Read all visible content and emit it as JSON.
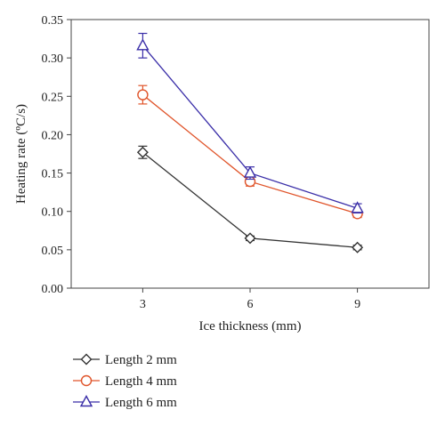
{
  "chart_data": {
    "type": "line",
    "title": "",
    "xlabel": "Ice thickness (mm)",
    "ylabel": "Heating rate (ºC/s)",
    "x": [
      3,
      6,
      9
    ],
    "x_tick_labels": [
      "3",
      "6",
      "9"
    ],
    "xlim": [
      1,
      11
    ],
    "ylim": [
      0,
      0.35
    ],
    "y_ticks": [
      0,
      0.05,
      0.1,
      0.15,
      0.2,
      0.25,
      0.3,
      0.35
    ],
    "y_tick_labels": [
      "0.00",
      "0.05",
      "0.10",
      "0.15",
      "0.20",
      "0.25",
      "0.30",
      "0.35"
    ],
    "grid": false,
    "legend_position": "bottom-left, below plot",
    "series": [
      {
        "name": "Length 2 mm",
        "values": [
          0.177,
          0.065,
          0.053
        ],
        "errors": [
          0.008,
          0.003,
          0.003
        ],
        "color": "#333333",
        "marker": "diamond"
      },
      {
        "name": "Length 4 mm",
        "values": [
          0.252,
          0.139,
          0.097
        ],
        "errors": [
          0.012,
          0.006,
          0.005
        ],
        "color": "#e0542a",
        "marker": "circle"
      },
      {
        "name": "Length 6 mm",
        "values": [
          0.316,
          0.15,
          0.104
        ],
        "errors": [
          0.016,
          0.008,
          0.006
        ],
        "color": "#3a2ea8",
        "marker": "triangle"
      }
    ]
  }
}
